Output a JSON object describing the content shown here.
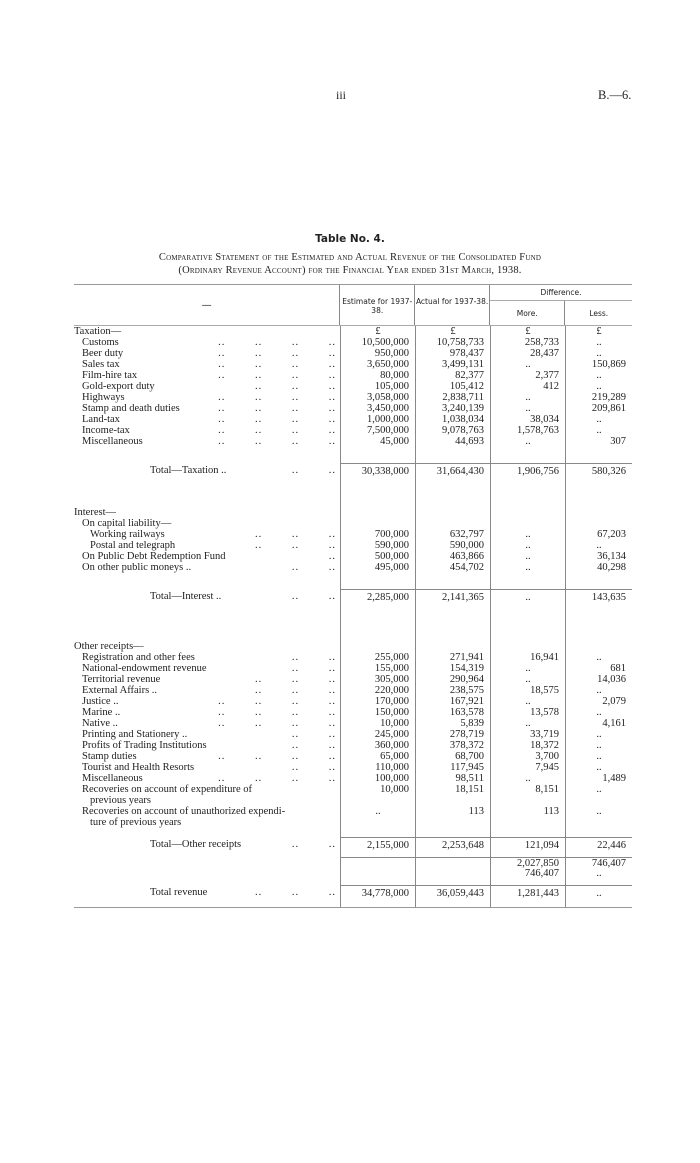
{
  "page": {
    "number": "iii",
    "reference": "B.—6."
  },
  "table": {
    "title": "Table No. 4.",
    "subtitle_line1": "Comparative Statement of the Estimated and Actual Revenue of the Consolidated Fund",
    "subtitle_line2": "(Ordinary Revenue Account) for the Financial Year ended 31st March, 1938.",
    "headers": {
      "label": "—",
      "estimate": "Estimate for 1937-38.",
      "actual": "Actual for 1937-38.",
      "difference": "Difference.",
      "more": "More.",
      "less": "Less."
    },
    "rows": [
      {
        "label": "Taxation—",
        "indent": 0,
        "leader": "",
        "values": [
          "£",
          "£",
          "£",
          "£"
        ],
        "kind": "head"
      },
      {
        "label": "Customs",
        "indent": 1,
        "leader": ".. .. .. ..",
        "values": [
          "10,500,000",
          "10,758,733",
          "258,733",
          ".."
        ]
      },
      {
        "label": "Beer duty",
        "indent": 1,
        "leader": ".. .. .. ..",
        "values": [
          "950,000",
          "978,437",
          "28,437",
          ".."
        ]
      },
      {
        "label": "Sales tax",
        "indent": 1,
        "leader": ".. .. .. ..",
        "values": [
          "3,650,000",
          "3,499,131",
          "..",
          "150,869"
        ]
      },
      {
        "label": "Film-hire tax",
        "indent": 1,
        "leader": ".. .. .. ..",
        "values": [
          "80,000",
          "82,377",
          "2,377",
          ".."
        ]
      },
      {
        "label": "Gold-export duty",
        "indent": 1,
        "leader": ".. .. ..",
        "values": [
          "105,000",
          "105,412",
          "412",
          ".."
        ]
      },
      {
        "label": "Highways",
        "indent": 1,
        "leader": ".. .. .. ..",
        "values": [
          "3,058,000",
          "2,838,711",
          "..",
          "219,289"
        ]
      },
      {
        "label": "Stamp and death duties",
        "indent": 1,
        "leader": ".. .. .. ..",
        "values": [
          "3,450,000",
          "3,240,139",
          "..",
          "209,861"
        ]
      },
      {
        "label": "Land-tax",
        "indent": 1,
        "leader": ".. .. .. ..",
        "values": [
          "1,000,000",
          "1,038,034",
          "38,034",
          ".."
        ]
      },
      {
        "label": "Income-tax",
        "indent": 1,
        "leader": ".. .. .. ..",
        "values": [
          "7,500,000",
          "9,078,763",
          "1,578,763",
          ".."
        ]
      },
      {
        "label": "Miscellaneous",
        "indent": 1,
        "leader": ".. .. .. ..",
        "values": [
          "45,000",
          "44,693",
          "..",
          "307"
        ]
      },
      {
        "kind": "gap",
        "h": 16
      },
      {
        "label": "Total—Taxation ..",
        "indent": 3,
        "leader": ".. ..",
        "values": [
          "30,338,000",
          "31,664,430",
          "1,906,756",
          "580,326"
        ],
        "kind": "total"
      },
      {
        "kind": "gap",
        "h": 30
      },
      {
        "label": "Interest—",
        "indent": 0,
        "leader": "",
        "values": [
          "",
          "",
          "",
          ""
        ]
      },
      {
        "label": "On capital liability—",
        "indent": 1,
        "leader": "",
        "values": [
          "",
          "",
          "",
          ""
        ]
      },
      {
        "label": "Working railways",
        "indent": 2,
        "leader": ".. .. ..",
        "values": [
          "700,000",
          "632,797",
          "..",
          "67,203"
        ]
      },
      {
        "label": "Postal and telegraph",
        "indent": 2,
        "leader": ".. .. ..",
        "values": [
          "590,000",
          "590,000",
          "..",
          ".."
        ]
      },
      {
        "label": "On Public Debt Redemption Fund",
        "indent": 1,
        "leader": "..",
        "values": [
          "500,000",
          "463,866",
          "..",
          "36,134"
        ]
      },
      {
        "label": "On other public moneys ..",
        "indent": 1,
        "leader": ".. ..",
        "values": [
          "495,000",
          "454,702",
          "..",
          "40,298"
        ]
      },
      {
        "kind": "gap",
        "h": 16
      },
      {
        "label": "Total—Interest ..",
        "indent": 3,
        "leader": ".. ..",
        "values": [
          "2,285,000",
          "2,141,365",
          "..",
          "143,635"
        ],
        "kind": "total"
      },
      {
        "kind": "gap",
        "h": 38
      },
      {
        "label": "Other receipts—",
        "indent": 0,
        "leader": "",
        "values": [
          "",
          "",
          "",
          ""
        ]
      },
      {
        "label": "Registration and other fees",
        "indent": 1,
        "leader": ".. ..",
        "values": [
          "255,000",
          "271,941",
          "16,941",
          ".."
        ]
      },
      {
        "label": "National-endowment revenue",
        "indent": 1,
        "leader": ".. ..",
        "values": [
          "155,000",
          "154,319",
          "..",
          "681"
        ]
      },
      {
        "label": "Territorial revenue",
        "indent": 1,
        "leader": ".. .. ..",
        "values": [
          "305,000",
          "290,964",
          "..",
          "14,036"
        ]
      },
      {
        "label": "External Affairs ..",
        "indent": 1,
        "leader": ".. .. ..",
        "values": [
          "220,000",
          "238,575",
          "18,575",
          ".."
        ]
      },
      {
        "label": "Justice ..",
        "indent": 1,
        "leader": ".. .. .. ..",
        "values": [
          "170,000",
          "167,921",
          "..",
          "2,079"
        ]
      },
      {
        "label": "Marine ..",
        "indent": 1,
        "leader": ".. .. .. ..",
        "values": [
          "150,000",
          "163,578",
          "13,578",
          ".."
        ]
      },
      {
        "label": "Native ..",
        "indent": 1,
        "leader": ".. .. .. ..",
        "values": [
          "10,000",
          "5,839",
          "..",
          "4,161"
        ]
      },
      {
        "label": "Printing and Stationery ..",
        "indent": 1,
        "leader": ".. ..",
        "values": [
          "245,000",
          "278,719",
          "33,719",
          ".."
        ]
      },
      {
        "label": "Profits of Trading Institutions",
        "indent": 1,
        "leader": ".. ..",
        "values": [
          "360,000",
          "378,372",
          "18,372",
          ".."
        ]
      },
      {
        "label": "Stamp duties",
        "indent": 1,
        "leader": ".. .. .. ..",
        "values": [
          "65,000",
          "68,700",
          "3,700",
          ".."
        ]
      },
      {
        "label": "Tourist and Health Resorts",
        "indent": 1,
        "leader": ".. ..",
        "values": [
          "110,000",
          "117,945",
          "7,945",
          ".."
        ]
      },
      {
        "label": "Miscellaneous",
        "indent": 1,
        "leader": ".. .. .. ..",
        "values": [
          "100,000",
          "98,511",
          "..",
          "1,489"
        ]
      },
      {
        "label": "Recoveries on account of expenditure of",
        "indent": 1,
        "leader": "",
        "values": [
          "10,000",
          "18,151",
          "8,151",
          ".."
        ]
      },
      {
        "label": "previous years",
        "indent": 2,
        "leader": "",
        "values": [
          "",
          "",
          "",
          ""
        ]
      },
      {
        "label": "Recoveries on account of unauthorized expendi-",
        "indent": 1,
        "leader": "",
        "values": [
          "..",
          "113",
          "113",
          ".."
        ]
      },
      {
        "label": "ture of previous years",
        "indent": 2,
        "leader": "",
        "values": [
          "",
          "",
          "",
          ""
        ]
      },
      {
        "kind": "gap",
        "h": 9
      },
      {
        "label": "Total—Other receipts",
        "indent": 3,
        "leader": ".. ..",
        "values": [
          "2,155,000",
          "2,253,648",
          "121,094",
          "22,446"
        ],
        "kind": "total"
      },
      {
        "kind": "gap",
        "h": 6
      },
      {
        "label": "",
        "indent": 0,
        "leader": "",
        "values": [
          "",
          "",
          "2,027,850",
          "746,407"
        ],
        "kind": "sub"
      },
      {
        "label": "",
        "indent": 0,
        "leader": "",
        "values": [
          "",
          "",
          "746,407",
          ".."
        ]
      },
      {
        "kind": "gap",
        "h": 6
      },
      {
        "label": "Total revenue",
        "indent": 3,
        "leader": ".. .. ..",
        "values": [
          "34,778,000",
          "36,059,443",
          "1,281,443",
          ".."
        ],
        "kind": "total"
      },
      {
        "kind": "gap",
        "h": 8
      }
    ]
  }
}
